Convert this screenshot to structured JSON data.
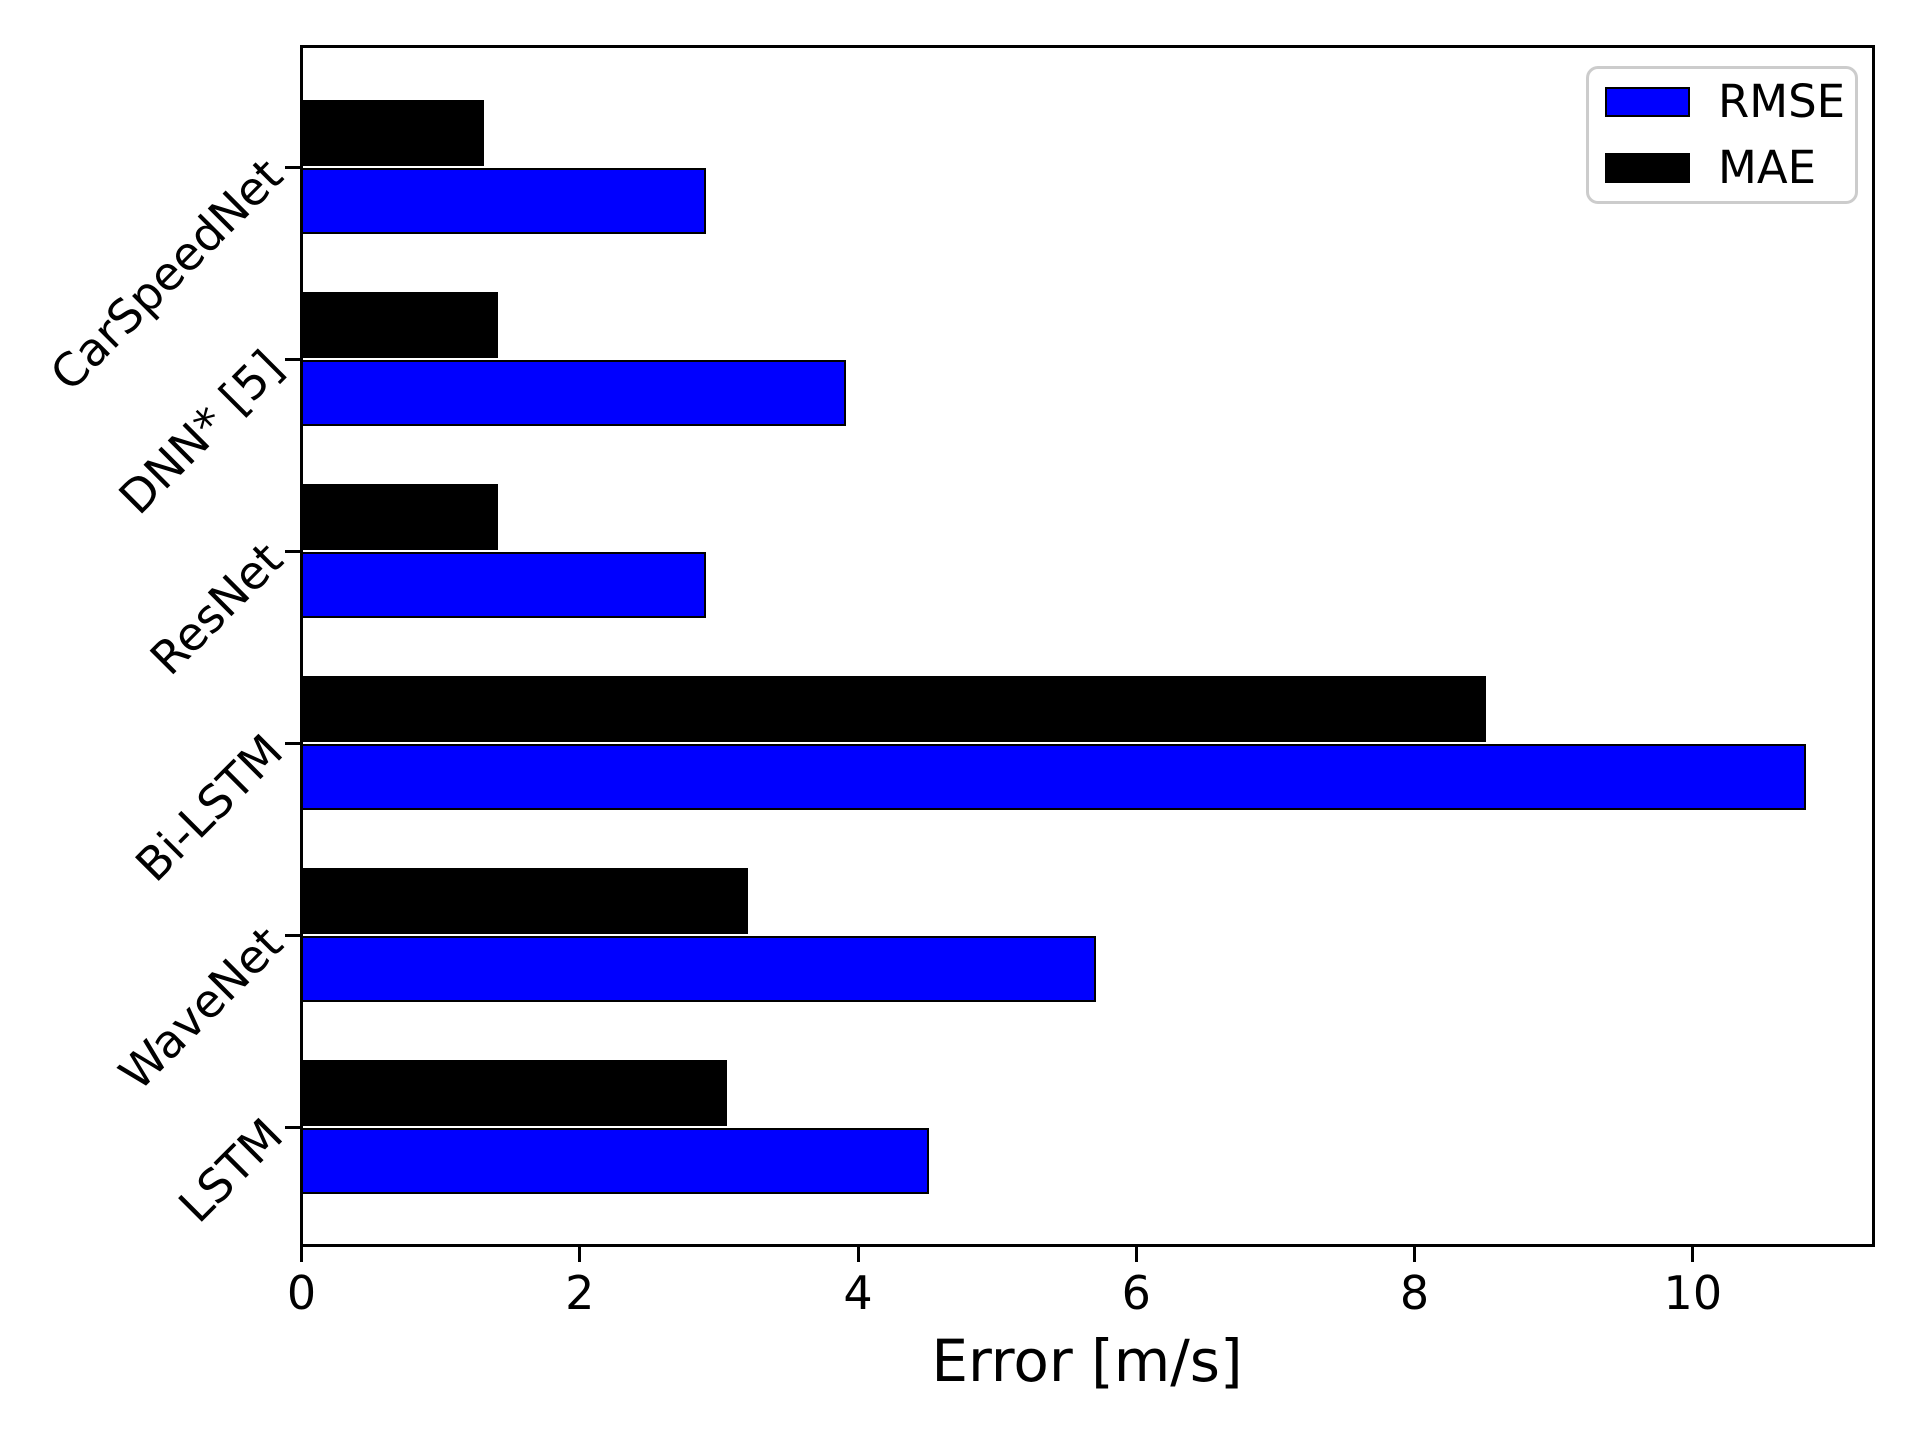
{
  "chart_data": {
    "type": "bar",
    "orientation": "horizontal",
    "title": "",
    "xlabel": "Error [m/s]",
    "ylabel": "",
    "categories": [
      "CarSpeedNet",
      "DNN* [5]",
      "ResNet",
      "Bi-LSTM",
      "WaveNet",
      "LSTM"
    ],
    "series": [
      {
        "name": "RMSE",
        "color": "#0000ff",
        "values": [
          2.9,
          3.9,
          2.9,
          10.8,
          5.7,
          4.5
        ]
      },
      {
        "name": "MAE",
        "color": "#000000",
        "values": [
          1.3,
          1.4,
          1.4,
          8.5,
          3.2,
          3.05
        ]
      }
    ],
    "group_order": "MAE bar drawn above RMSE bar within each category",
    "xticks": [
      0,
      2,
      4,
      6,
      8,
      10
    ],
    "xlim": [
      0,
      11.32
    ],
    "grid": false,
    "legend_position": "upper-right"
  },
  "colors": {
    "rmse": "#0000ff",
    "mae": "#000000",
    "axis": "#000000",
    "legend_border": "#cccccc",
    "background": "#ffffff"
  }
}
